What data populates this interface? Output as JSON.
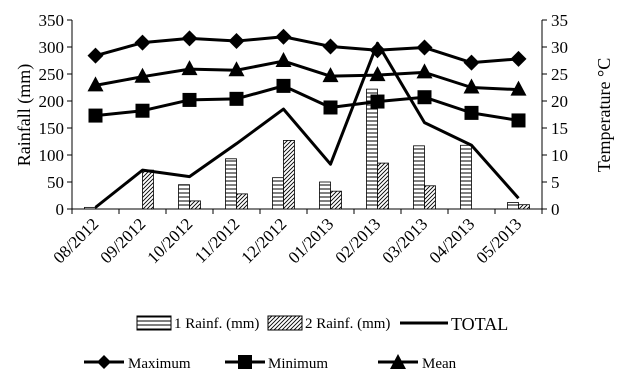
{
  "chart_data": {
    "type": "bar",
    "categories": [
      "08/2012",
      "09/2012",
      "10/2012",
      "11/2012",
      "12/2012",
      "01/2013",
      "02/2013",
      "03/2013",
      "04/2013",
      "05/2013"
    ],
    "ylabel": "Rainfall (mm)",
    "y2label": "Temperature °C",
    "ylim": [
      0,
      350
    ],
    "y2lim": [
      0,
      35
    ],
    "yticks": [
      "0",
      "50",
      "100",
      "150",
      "200",
      "250",
      "300",
      "350"
    ],
    "y2ticks": [
      "0",
      "5",
      "10",
      "15",
      "20",
      "25",
      "30",
      "35"
    ],
    "grid": false,
    "legend_position": "bottom",
    "bar_series": [
      {
        "name": "1 Rainf. (mm)",
        "values": [
          3,
          0,
          45,
          93,
          58,
          50,
          222,
          117,
          118,
          12
        ],
        "pattern": "horizontal-stripes"
      },
      {
        "name": "2 Rainf. (mm)",
        "values": [
          0,
          72,
          15,
          28,
          127,
          33,
          85,
          43,
          0,
          8
        ],
        "pattern": "diagonal-stripes"
      }
    ],
    "line_series": [
      {
        "name": "TOTAL",
        "axis": "left",
        "values": [
          3,
          72,
          60,
          121,
          185,
          83,
          307,
          160,
          118,
          20
        ],
        "marker": "none"
      },
      {
        "name": "Maximum",
        "axis": "right",
        "values": [
          28.4,
          30.8,
          31.6,
          31.1,
          31.9,
          30.1,
          29.4,
          29.9,
          27.1,
          27.8
        ],
        "marker": "diamond"
      },
      {
        "name": "Minimum",
        "axis": "right",
        "values": [
          17.3,
          18.2,
          20.2,
          20.4,
          22.8,
          18.8,
          19.9,
          20.7,
          17.8,
          16.4
        ],
        "marker": "square"
      },
      {
        "name": "Mean",
        "axis": "right",
        "values": [
          22.9,
          24.5,
          25.9,
          25.7,
          27.4,
          24.6,
          24.8,
          25.3,
          22.5,
          22.1
        ],
        "marker": "triangle"
      }
    ],
    "colors": {
      "ink": "#000000",
      "background": "#ffffff"
    }
  }
}
